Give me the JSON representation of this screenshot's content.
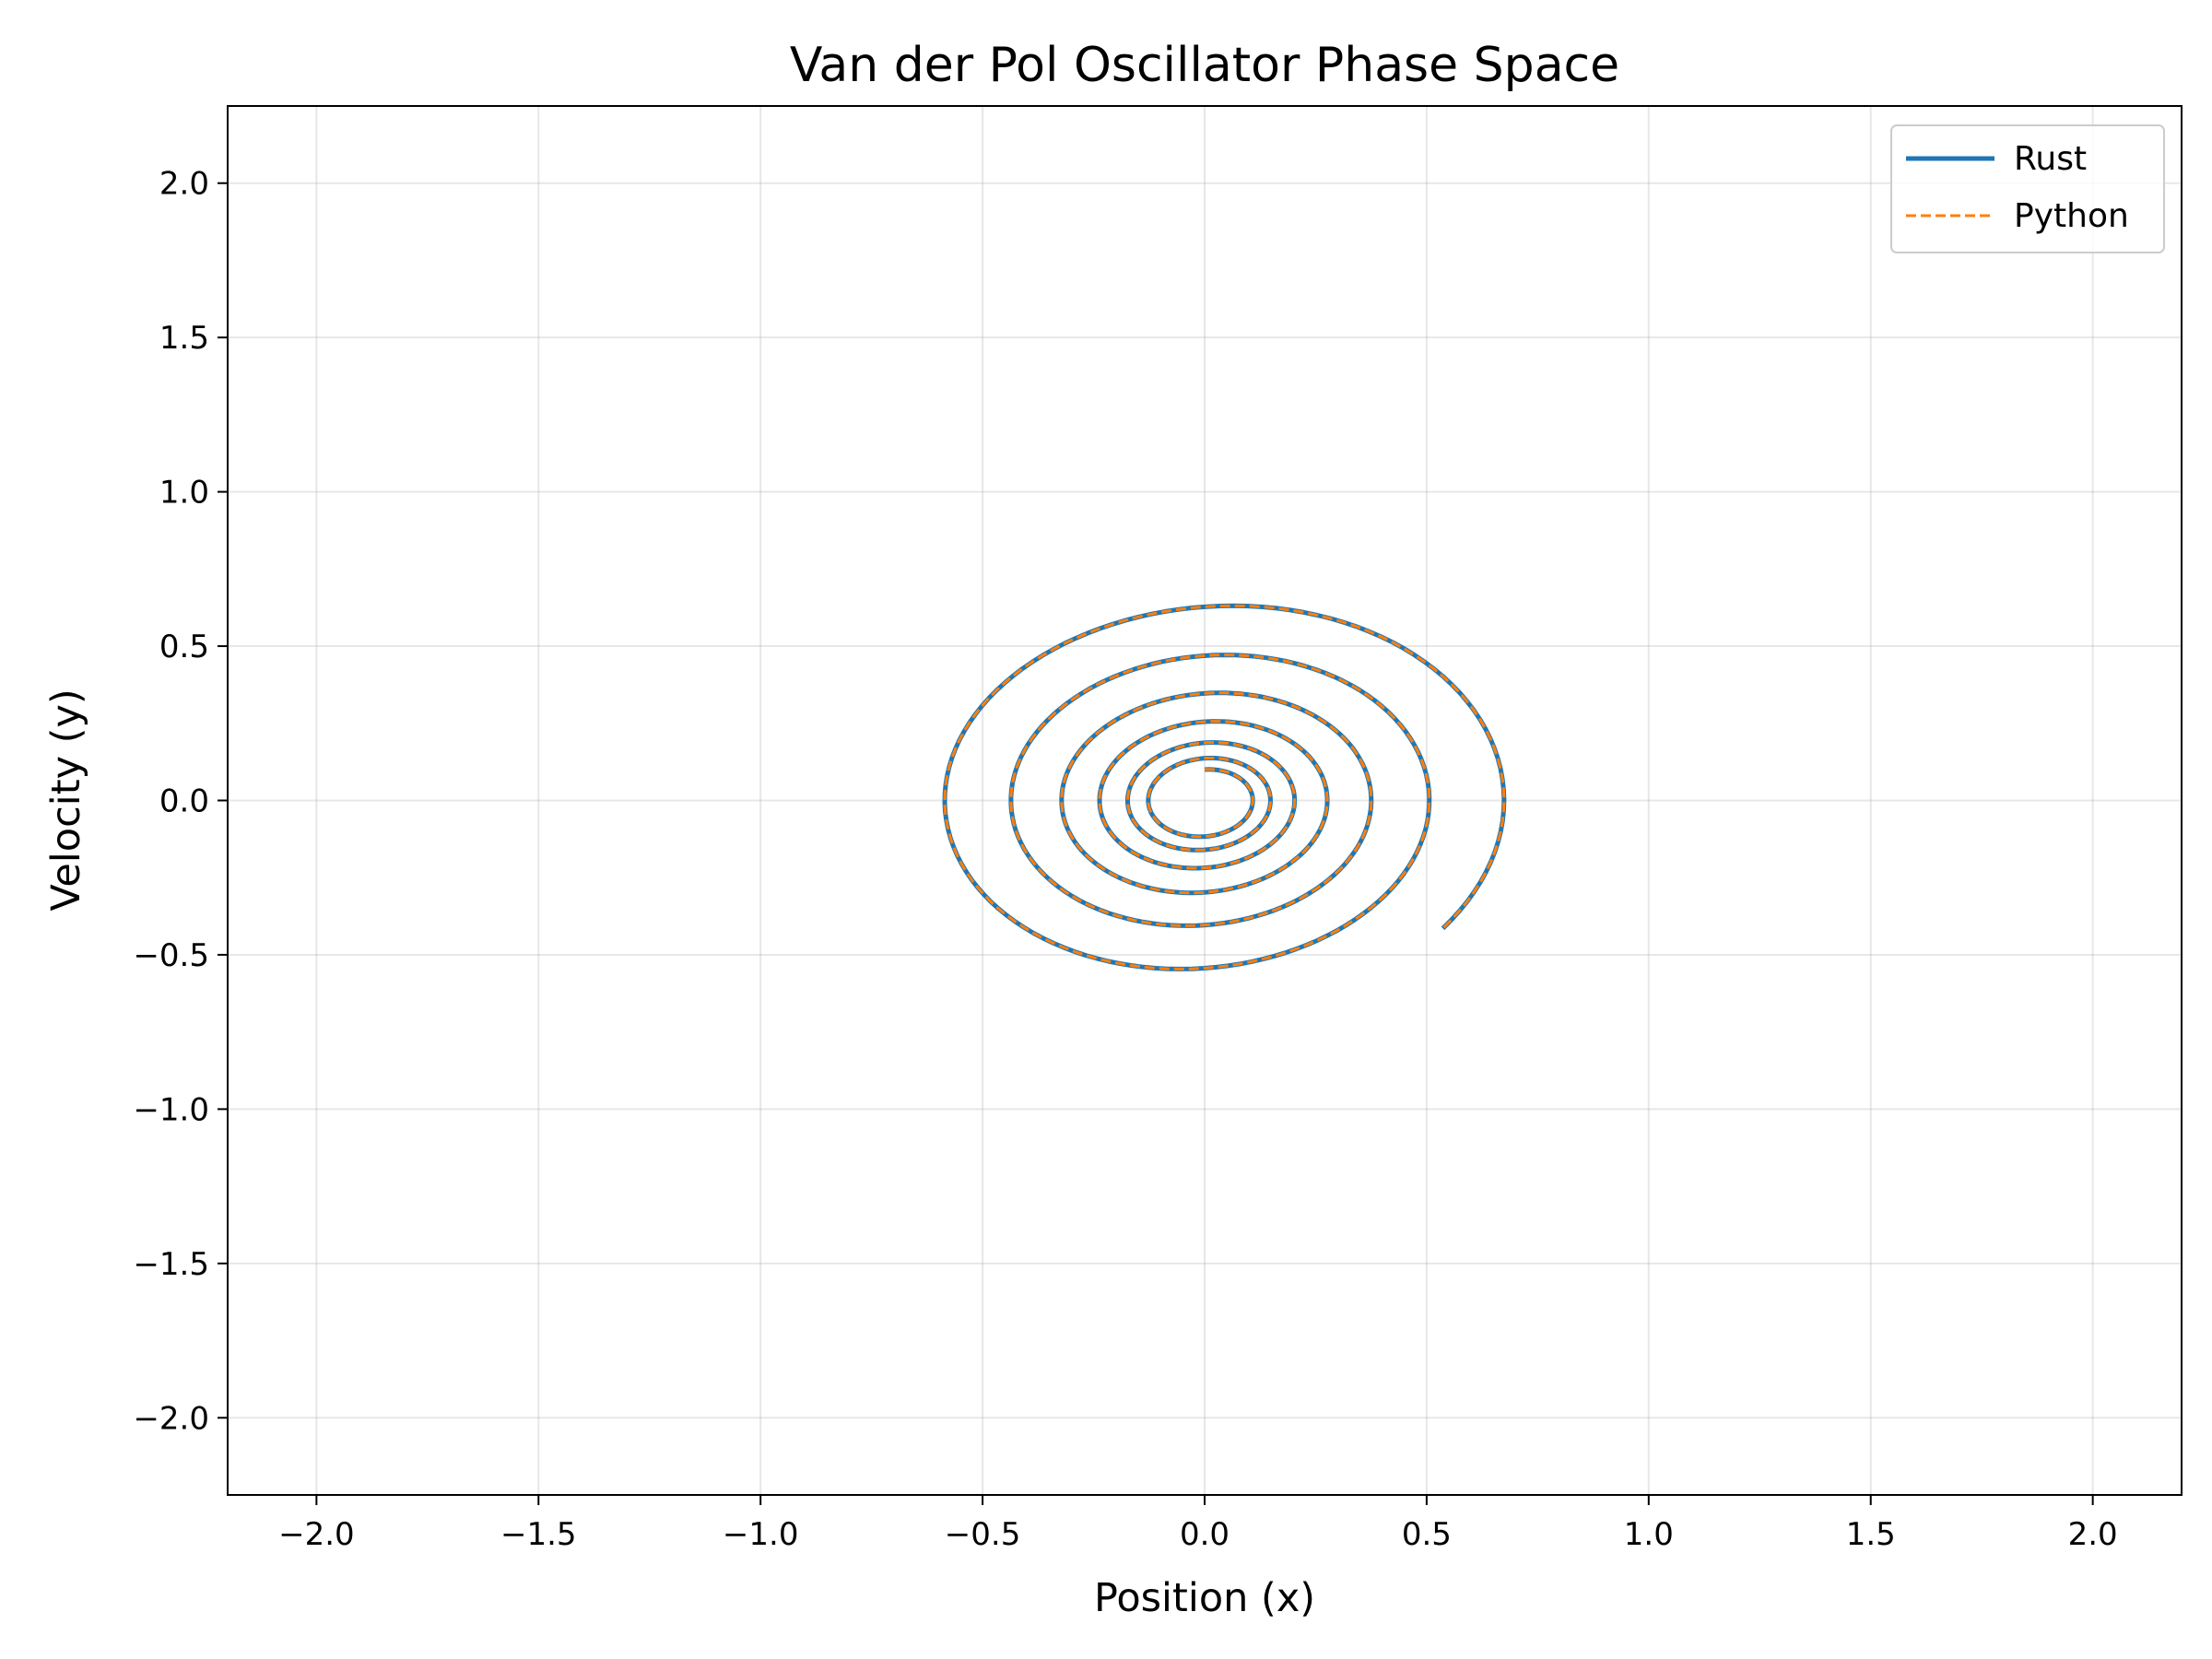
{
  "chart_data": {
    "type": "line",
    "title": "Van der Pol Oscillator Phase Space",
    "xlabel": "Position (x)",
    "ylabel": "Velocity (y)",
    "xlim": [
      -2.2,
      2.2
    ],
    "ylim": [
      -2.25,
      2.25
    ],
    "xticks": [
      -2.0,
      -1.5,
      -1.0,
      -0.5,
      0.0,
      0.5,
      1.0,
      1.5,
      2.0
    ],
    "yticks": [
      -2.0,
      -1.5,
      -1.0,
      -0.5,
      0.0,
      0.5,
      1.0,
      1.5,
      2.0
    ],
    "xtick_labels": [
      "−2.0",
      "−1.5",
      "−1.0",
      "−0.5",
      "0.0",
      "0.5",
      "1.0",
      "1.5",
      "2.0"
    ],
    "ytick_labels": [
      "−2.0",
      "−1.5",
      "−1.0",
      "−0.5",
      "0.0",
      "0.5",
      "1.0",
      "1.5",
      "2.0"
    ],
    "grid": true,
    "legend_position": "top-right",
    "initial_state": {
      "x": 0.0,
      "y": 0.1
    },
    "series": [
      {
        "name": "Rust",
        "color": "#1f77b4",
        "style": "solid"
      },
      {
        "name": "Python",
        "color": "#ff7f0e",
        "style": "dashed"
      }
    ]
  }
}
